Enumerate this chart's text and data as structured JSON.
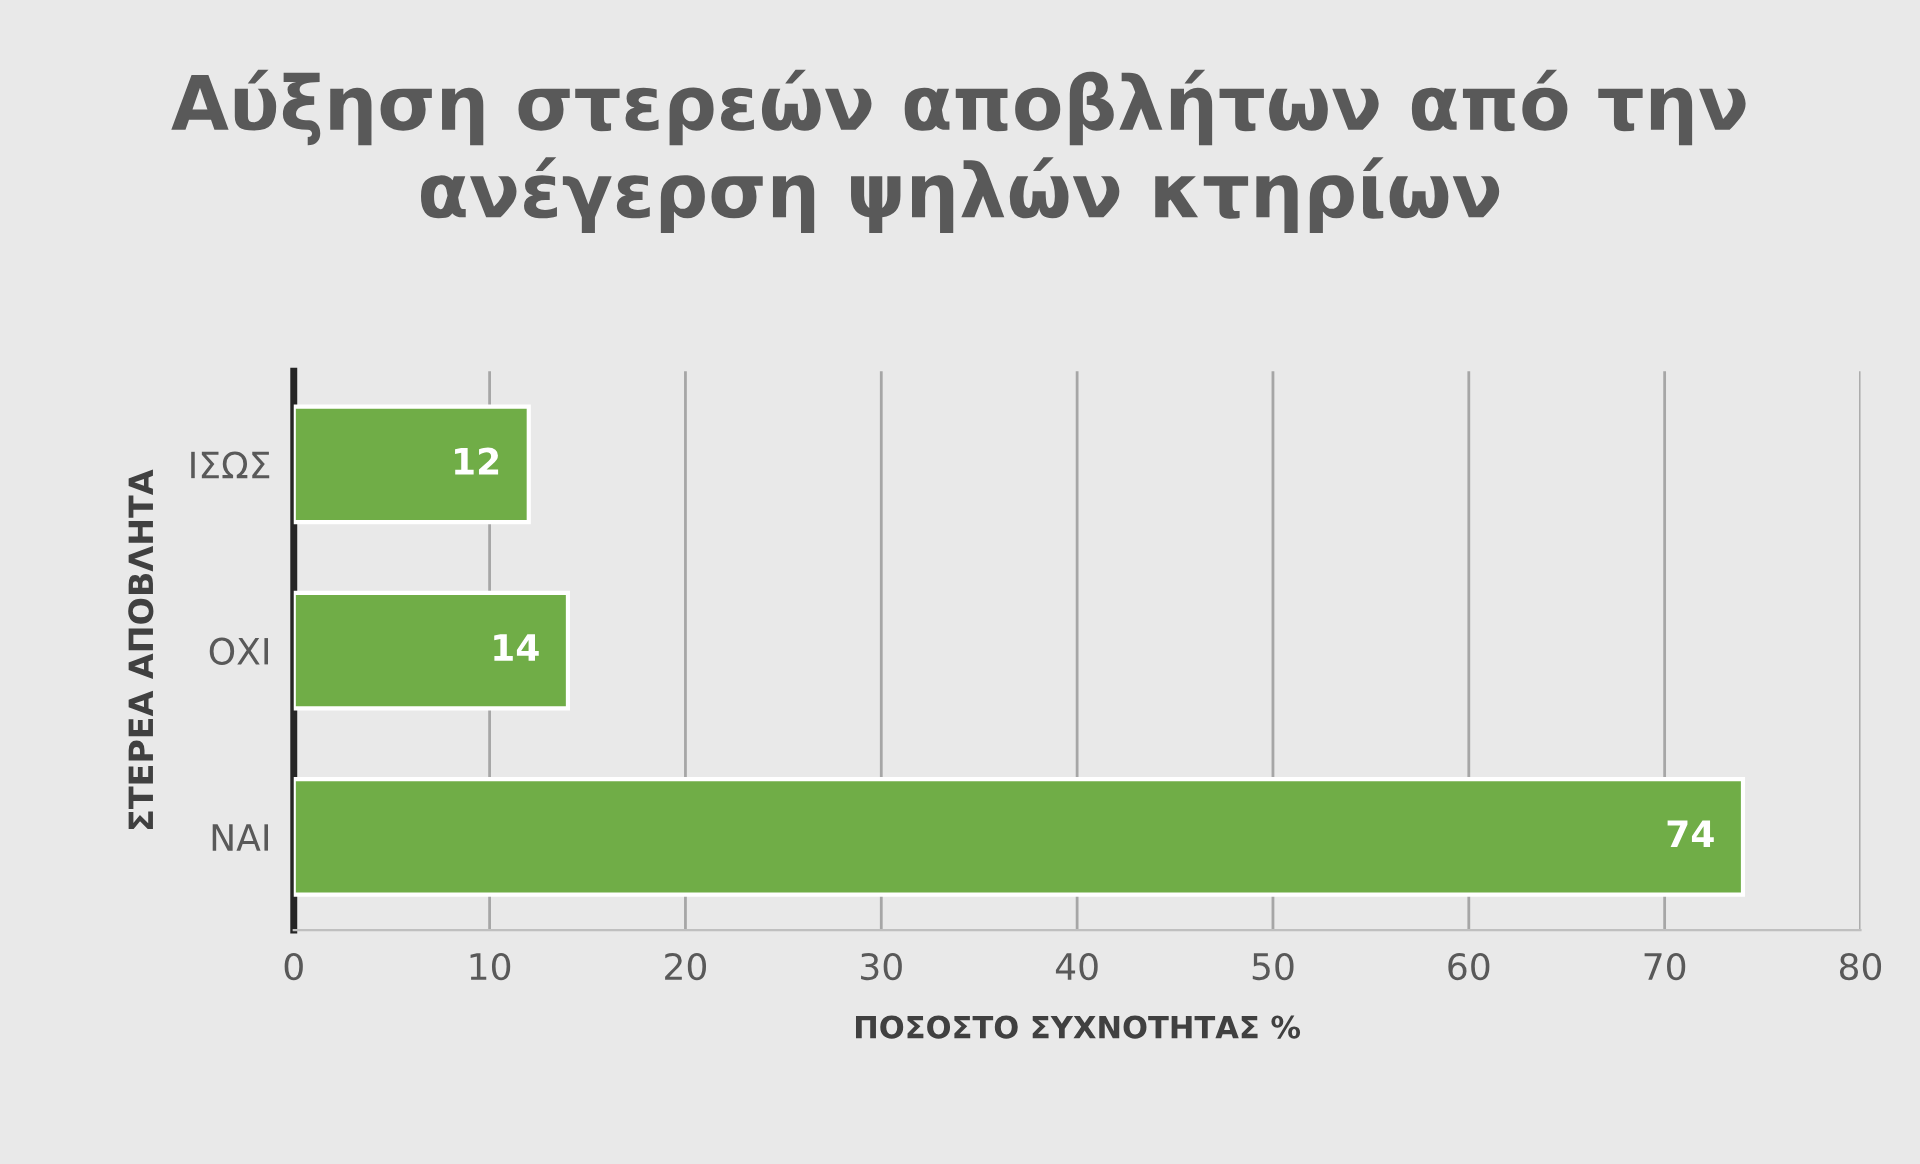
{
  "chart_data": {
    "type": "bar",
    "orientation": "horizontal",
    "title": "Αύξηση στερεών αποβλήτων από την ανέγερση ψηλών κτηρίων",
    "xlabel": "ΠΟΣΟΣΤΟ ΣΥΧΝΟΤΗΤΑΣ %",
    "ylabel": "ΣΤΕΡΕΑ ΑΠΟΒΛΗΤΑ",
    "categories": [
      "ΙΣΩΣ",
      "ΟΧΙ",
      "ΝΑΙ"
    ],
    "values": [
      12,
      14,
      74
    ],
    "color": "#70ad47",
    "xlim": [
      0,
      80
    ],
    "xticks": [
      0,
      10,
      20,
      30,
      40,
      50,
      60,
      70,
      80
    ],
    "grid": "x",
    "data_labels": true
  }
}
